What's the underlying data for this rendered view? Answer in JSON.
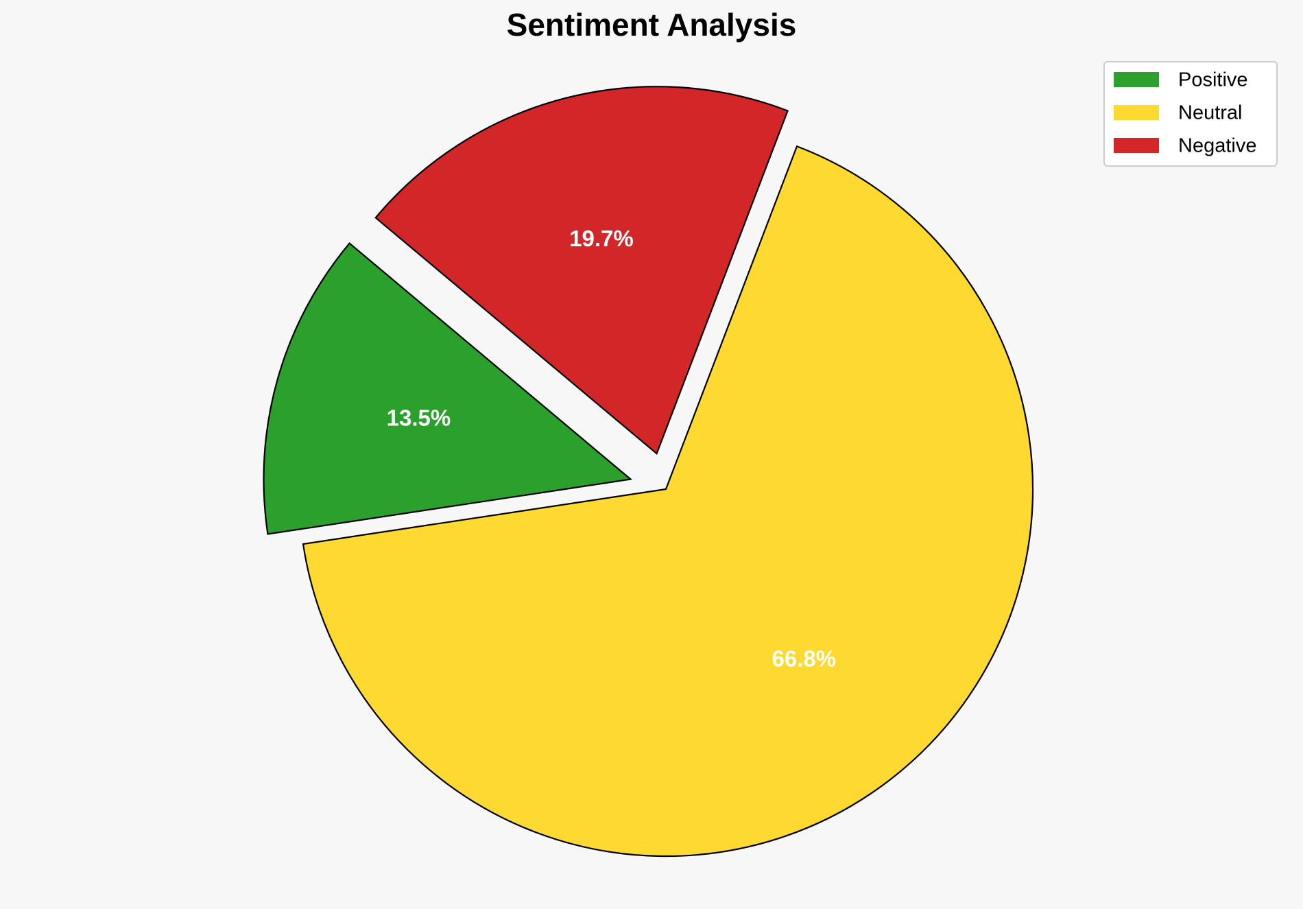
{
  "chart_data": {
    "type": "pie",
    "title": "Sentiment Analysis",
    "categories": [
      "Positive",
      "Neutral",
      "Negative"
    ],
    "values": [
      13.5,
      66.8,
      19.7
    ],
    "value_labels": [
      "13.5%",
      "66.8%",
      "19.7%"
    ],
    "colors": [
      "#2ca02c",
      "#fdd931",
      "#d32628"
    ],
    "explode": [
      0.1,
      0,
      0.1
    ],
    "legend": "upper right"
  }
}
